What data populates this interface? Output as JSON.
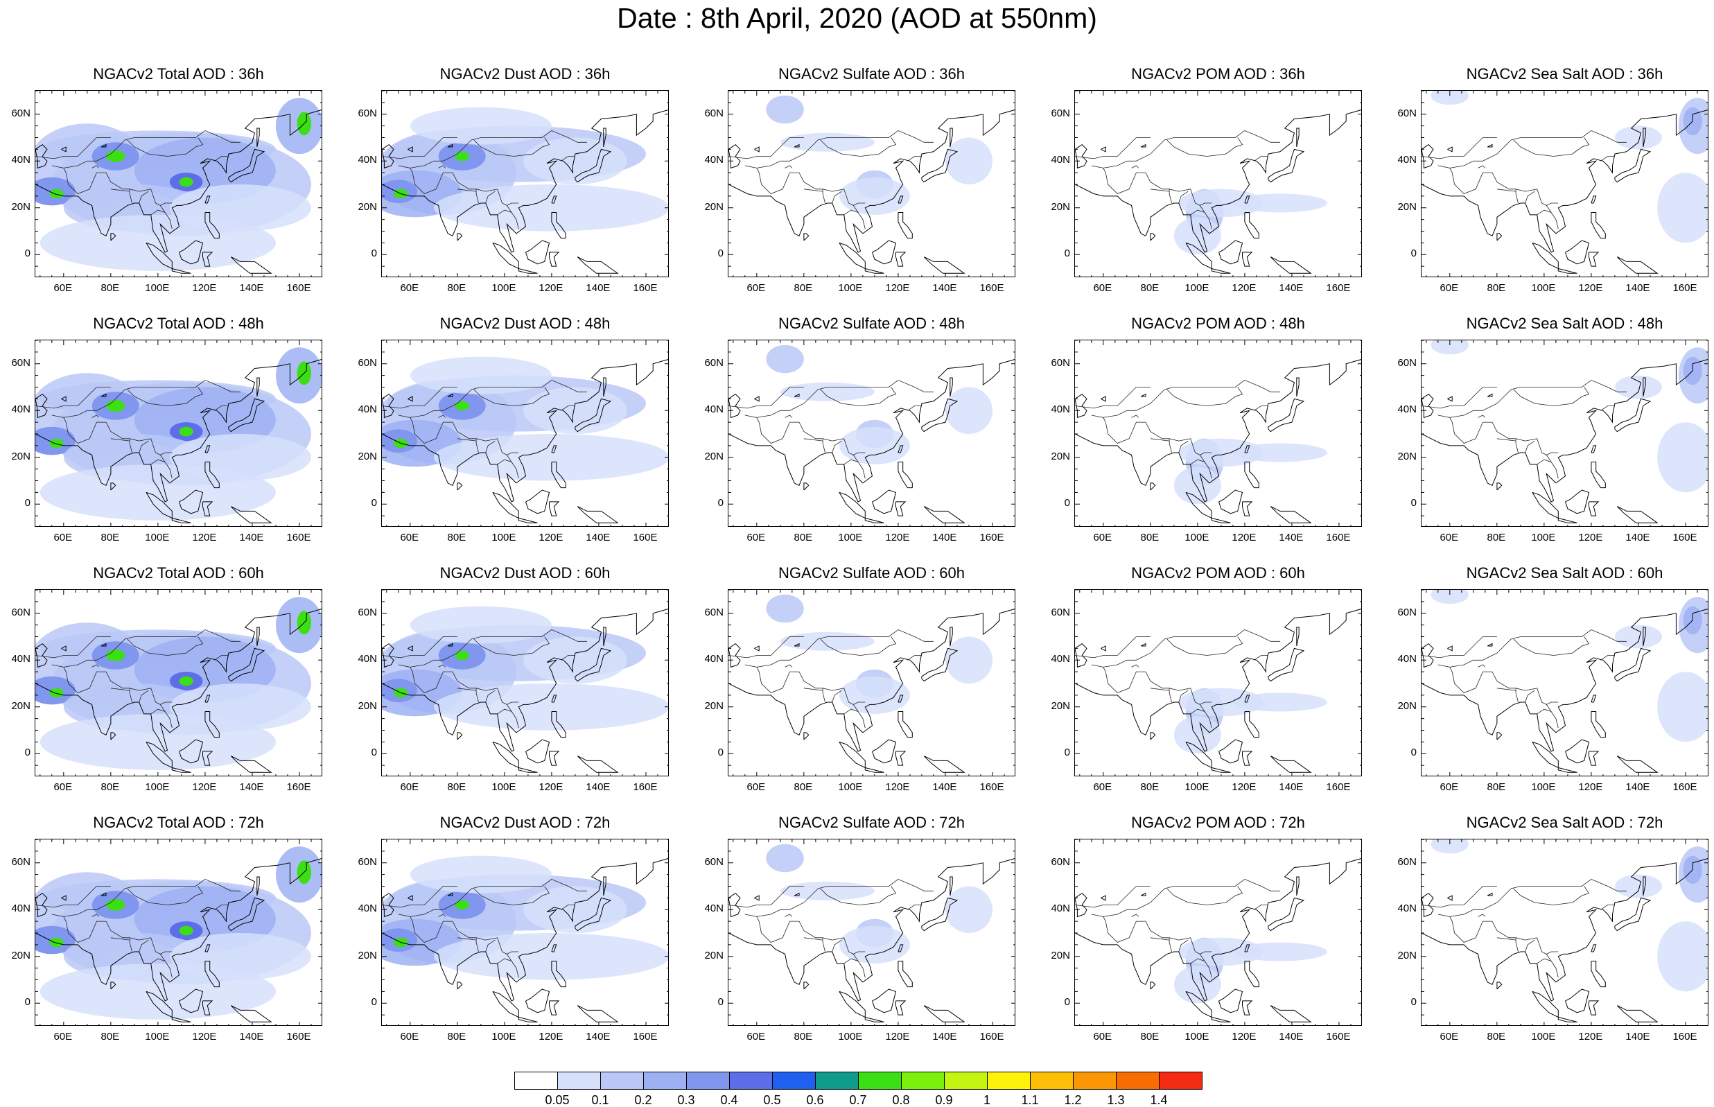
{
  "title": "Date : 8th April, 2020 (AOD at 550nm)",
  "rows": [
    {
      "panels": [
        {
          "title": "NGACv2 Total AOD : 36h",
          "species": "total",
          "intensity": 3
        },
        {
          "title": "NGACv2 Dust AOD : 36h",
          "species": "dust",
          "intensity": 2
        },
        {
          "title": "NGACv2 Sulfate AOD : 36h",
          "species": "sulfate",
          "intensity": 1
        },
        {
          "title": "NGACv2 POM AOD : 36h",
          "species": "pom",
          "intensity": 1
        },
        {
          "title": "NGACv2 Sea Salt AOD : 36h",
          "species": "seasalt",
          "intensity": 1
        }
      ]
    },
    {
      "panels": [
        {
          "title": "NGACv2 Total AOD : 48h",
          "species": "total",
          "intensity": 3
        },
        {
          "title": "NGACv2 Dust AOD : 48h",
          "species": "dust",
          "intensity": 2
        },
        {
          "title": "NGACv2 Sulfate AOD : 48h",
          "species": "sulfate",
          "intensity": 1
        },
        {
          "title": "NGACv2 POM AOD : 48h",
          "species": "pom",
          "intensity": 1
        },
        {
          "title": "NGACv2 Sea Salt AOD : 48h",
          "species": "seasalt",
          "intensity": 1
        }
      ]
    },
    {
      "panels": [
        {
          "title": "NGACv2 Total AOD : 60h",
          "species": "total",
          "intensity": 3
        },
        {
          "title": "NGACv2 Dust AOD : 60h",
          "species": "dust",
          "intensity": 2
        },
        {
          "title": "NGACv2 Sulfate AOD : 60h",
          "species": "sulfate",
          "intensity": 1
        },
        {
          "title": "NGACv2 POM AOD : 60h",
          "species": "pom",
          "intensity": 1
        },
        {
          "title": "NGACv2 Sea Salt AOD : 60h",
          "species": "seasalt",
          "intensity": 1
        }
      ]
    },
    {
      "panels": [
        {
          "title": "NGACv2 Total AOD : 72h",
          "species": "total",
          "intensity": 3
        },
        {
          "title": "NGACv2 Dust AOD : 72h",
          "species": "dust",
          "intensity": 2
        },
        {
          "title": "NGACv2 Sulfate AOD : 72h",
          "species": "sulfate",
          "intensity": 1
        },
        {
          "title": "NGACv2 POM AOD : 72h",
          "species": "pom",
          "intensity": 1
        },
        {
          "title": "NGACv2 Sea Salt  AOD : 72h",
          "species": "seasalt",
          "intensity": 1
        }
      ]
    }
  ],
  "lat_ticks": [
    "60N",
    "40N",
    "20N",
    "0"
  ],
  "lat_values": [
    60,
    40,
    20,
    0
  ],
  "lon_ticks": [
    "60E",
    "80E",
    "100E",
    "120E",
    "140E",
    "160E"
  ],
  "lon_values": [
    60,
    80,
    100,
    120,
    140,
    160
  ],
  "map_extent": {
    "lon": [
      48,
      170
    ],
    "lat": [
      -10,
      70
    ]
  },
  "colorbar": {
    "labels": [
      "0.05",
      "0.1",
      "0.2",
      "0.3",
      "0.4",
      "0.5",
      "0.6",
      "0.7",
      "0.8",
      "0.9",
      "1",
      "1.1",
      "1.2",
      "1.3",
      "1.4"
    ],
    "colors": [
      "#ffffff",
      "#d6e0fb",
      "#bac8f7",
      "#9db0f3",
      "#8196ee",
      "#5e6de8",
      "#1f60f0",
      "#109a8c",
      "#3cdf14",
      "#7af00c",
      "#c4f510",
      "#fef20a",
      "#fdbf06",
      "#fb9704",
      "#f76d03",
      "#f52a12"
    ]
  }
}
